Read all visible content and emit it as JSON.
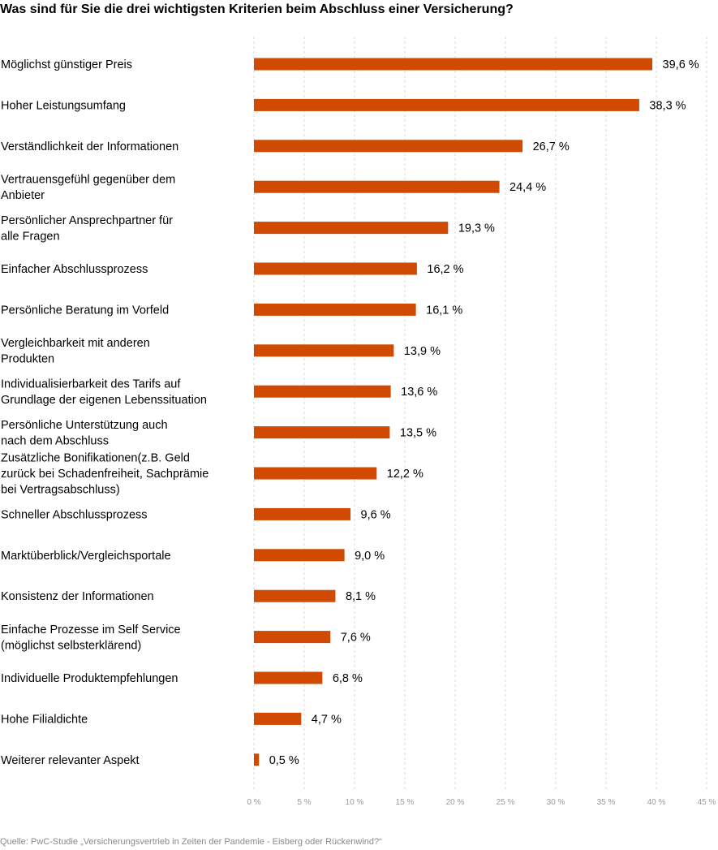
{
  "chart_data": {
    "type": "bar",
    "orientation": "horizontal",
    "title": "Was sind für Sie die drei wichtigsten Kriterien beim Abschluss einer Versicherung?",
    "source": "Quelle: PwC-Studie „Versicherungsvertrieb in Zeiten der Pandemie - Eisberg oder Rückenwind?“",
    "categories": [
      [
        "Möglichst günstiger Preis"
      ],
      [
        "Hoher Leistungsumfang"
      ],
      [
        "Verständlichkeit der Informationen"
      ],
      [
        "Vertrauensgefühl gegenüber dem",
        "Anbieter"
      ],
      [
        "Persönlicher Ansprechpartner für",
        "alle Fragen"
      ],
      [
        "Einfacher Abschlussprozess"
      ],
      [
        "Persönliche Beratung im Vorfeld"
      ],
      [
        "Vergleichbarkeit mit anderen",
        "Produkten"
      ],
      [
        "Individualisierbarkeit des Tarifs auf",
        "Grundlage der eigenen Lebenssituation"
      ],
      [
        "Persönliche Unterstützung auch",
        "nach dem Abschluss"
      ],
      [
        "Zusätzliche Bonifikationen(z.B. Geld",
        "zurück bei Schadenfreiheit, Sachprämie",
        "bei Vertragsabschluss)"
      ],
      [
        "Schneller Abschlussprozess"
      ],
      [
        "Marktüberblick/Vergleichsportale"
      ],
      [
        "Konsistenz der Informationen"
      ],
      [
        "Einfache Prozesse im Self Service",
        "(möglichst selbsterklärend)"
      ],
      [
        "Individuelle Produktempfehlungen"
      ],
      [
        "Hohe Filialdichte"
      ],
      [
        "Weiterer relevanter Aspekt"
      ]
    ],
    "values": [
      39.6,
      38.3,
      26.7,
      24.4,
      19.3,
      16.2,
      16.1,
      13.9,
      13.6,
      13.5,
      12.2,
      9.6,
      9.0,
      8.1,
      7.6,
      6.8,
      4.7,
      0.5
    ],
    "value_labels": [
      "39,6 %",
      "38,3 %",
      "26,7 %",
      "24,4 %",
      "19,3 %",
      "16,2 %",
      "16,1 %",
      "13,9 %",
      "13,6 %",
      "13,5 %",
      "12,2 %",
      "9,6 %",
      "9,0 %",
      "8,1 %",
      "7,6 %",
      "6,8 %",
      "4,7 %",
      "0,5 %"
    ],
    "xlim": [
      0,
      45
    ],
    "xticks": [
      0,
      5,
      10,
      15,
      20,
      25,
      30,
      35,
      40,
      45
    ],
    "xtick_labels": [
      "0 %",
      "5 %",
      "10 %",
      "15 %",
      "20 %",
      "25 %",
      "30 %",
      "35 %",
      "40 %",
      "45 %"
    ],
    "grid": "vertical dashed",
    "bar_color": "#d04a02"
  }
}
